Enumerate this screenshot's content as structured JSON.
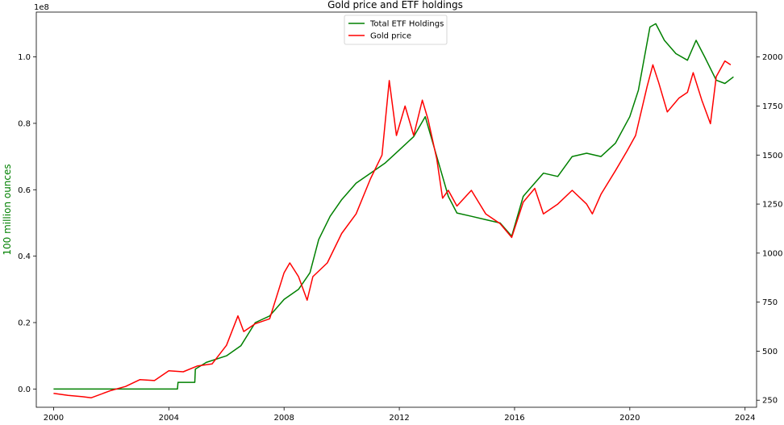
{
  "chart_data": {
    "type": "line",
    "title": "Gold price and ETF holdings",
    "xlabel": "",
    "xlim": [
      1999.4,
      2024.4
    ],
    "x_ticks": [
      "2000",
      "2004",
      "2008",
      "2012",
      "2016",
      "2020",
      "2024"
    ],
    "left_axis": {
      "label": "100 million ounces",
      "label_color": "#008000",
      "scale_note": "1e8",
      "ylim": [
        -0.055,
        1.135
      ],
      "ticks": [
        "0.0",
        "0.2",
        "0.4",
        "0.6",
        "0.8",
        "1.0"
      ]
    },
    "right_axis": {
      "label": "",
      "ylim": [
        214,
        2229
      ],
      "ticks": [
        "250",
        "500",
        "750",
        "1000",
        "1250",
        "1500",
        "1750",
        "2000"
      ]
    },
    "legend": {
      "placement": "top-center",
      "entries": [
        "Total ETF Holdings",
        "Gold price"
      ]
    },
    "series": [
      {
        "name": "Total ETF Holdings",
        "color": "#008000",
        "axis": "left",
        "x": [
          2000.0,
          2003.0,
          2004.3,
          2004.32,
          2004.9,
          2004.92,
          2005.3,
          2006.0,
          2006.5,
          2007.0,
          2007.5,
          2008.0,
          2008.5,
          2008.9,
          2009.2,
          2009.6,
          2010.0,
          2010.5,
          2011.0,
          2011.5,
          2012.0,
          2012.5,
          2012.9,
          2013.3,
          2013.7,
          2014.0,
          2014.5,
          2015.0,
          2015.5,
          2015.9,
          2016.3,
          2016.5,
          2017.0,
          2017.5,
          2018.0,
          2018.5,
          2019.0,
          2019.5,
          2020.0,
          2020.3,
          2020.7,
          2020.9,
          2021.2,
          2021.6,
          2022.0,
          2022.3,
          2022.6,
          2023.0,
          2023.3,
          2023.6
        ],
        "y": [
          0.0,
          0.0,
          0.0,
          0.02,
          0.02,
          0.06,
          0.08,
          0.1,
          0.13,
          0.2,
          0.22,
          0.27,
          0.3,
          0.35,
          0.45,
          0.52,
          0.57,
          0.62,
          0.65,
          0.68,
          0.72,
          0.76,
          0.82,
          0.7,
          0.58,
          0.53,
          0.52,
          0.51,
          0.5,
          0.46,
          0.58,
          0.6,
          0.65,
          0.64,
          0.7,
          0.71,
          0.7,
          0.74,
          0.82,
          0.9,
          1.09,
          1.1,
          1.05,
          1.01,
          0.99,
          1.05,
          1.0,
          0.93,
          0.92,
          0.94
        ]
      },
      {
        "name": "Gold price",
        "color": "#ff0000",
        "axis": "right",
        "x": [
          2000.0,
          2000.5,
          2001.0,
          2001.3,
          2002.0,
          2002.5,
          2003.0,
          2003.5,
          2004.0,
          2004.5,
          2005.0,
          2005.5,
          2006.0,
          2006.4,
          2006.6,
          2007.0,
          2007.5,
          2008.0,
          2008.2,
          2008.5,
          2008.8,
          2009.0,
          2009.5,
          2010.0,
          2010.5,
          2011.0,
          2011.4,
          2011.65,
          2011.9,
          2012.2,
          2012.5,
          2012.8,
          2013.0,
          2013.3,
          2013.5,
          2013.7,
          2014.0,
          2014.5,
          2015.0,
          2015.5,
          2015.9,
          2016.3,
          2016.7,
          2017.0,
          2017.5,
          2018.0,
          2018.5,
          2018.7,
          2019.0,
          2019.5,
          2019.9,
          2020.2,
          2020.6,
          2020.8,
          2021.0,
          2021.3,
          2021.7,
          2022.0,
          2022.2,
          2022.5,
          2022.8,
          2023.0,
          2023.3,
          2023.5
        ],
        "y": [
          285,
          275,
          268,
          262,
          300,
          320,
          355,
          350,
          400,
          395,
          425,
          435,
          530,
          680,
          600,
          640,
          665,
          900,
          950,
          880,
          760,
          880,
          950,
          1100,
          1200,
          1380,
          1500,
          1880,
          1600,
          1750,
          1600,
          1780,
          1680,
          1480,
          1280,
          1320,
          1240,
          1320,
          1200,
          1150,
          1080,
          1260,
          1330,
          1200,
          1250,
          1320,
          1250,
          1200,
          1300,
          1420,
          1520,
          1600,
          1850,
          1960,
          1870,
          1720,
          1790,
          1820,
          1920,
          1780,
          1660,
          1900,
          1980,
          1960
        ]
      }
    ]
  }
}
